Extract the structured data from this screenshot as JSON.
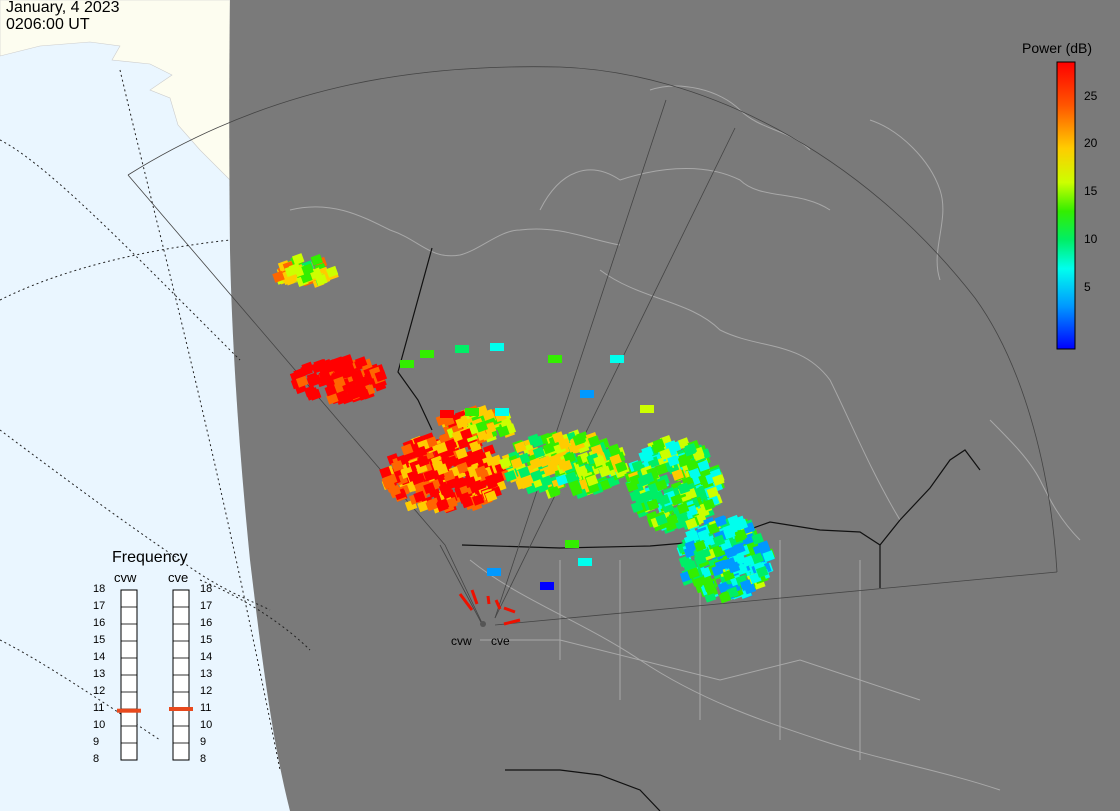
{
  "timestamp": {
    "date": "January, 4 2023",
    "time": "0206:00 UT"
  },
  "colorbar": {
    "title": "Power (dB)",
    "ticks": [
      "25",
      "20",
      "15",
      "10",
      "5"
    ],
    "colors": [
      "#ff0000",
      "#ff6600",
      "#ffcc00",
      "#ccff00",
      "#33ee00",
      "#00ee66",
      "#00ffee",
      "#0099ff",
      "#0000ff"
    ]
  },
  "radars": {
    "title": "Frequency",
    "sites": [
      {
        "code": "cvw",
        "frequency_mhz": 10.9
      },
      {
        "code": "cve",
        "frequency_mhz": 11.0
      }
    ],
    "frequency_scale": [
      "18",
      "17",
      "16",
      "15",
      "14",
      "13",
      "12",
      "11",
      "10",
      "9",
      "8"
    ],
    "indicator_color": "#e8491d"
  },
  "map": {
    "site_labels": [
      "cvw",
      "cve"
    ],
    "colors": {
      "land_gray": "#7a7a7a",
      "ocean": "#eaf6ff",
      "day_land": "#fdfdf0"
    }
  }
}
